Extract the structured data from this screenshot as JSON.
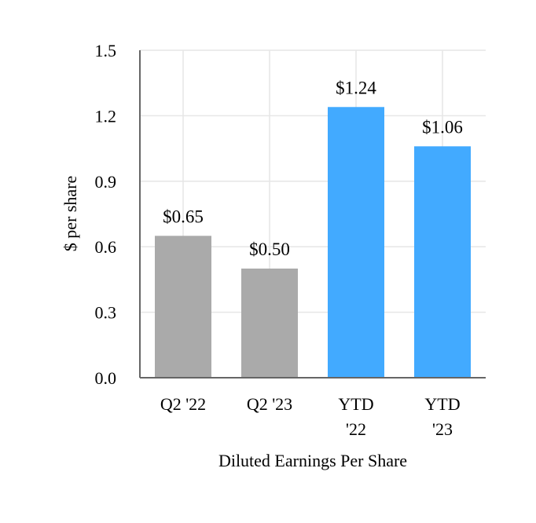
{
  "chart_data": {
    "type": "bar",
    "title": "",
    "xlabel": "Diluted Earnings Per Share",
    "ylabel": "$ per share",
    "ylim": [
      0,
      1.5
    ],
    "yticks": [
      "0.0",
      "0.3",
      "0.6",
      "0.9",
      "1.2",
      "1.5"
    ],
    "ytick_values": [
      0.0,
      0.3,
      0.6,
      0.9,
      1.2,
      1.5
    ],
    "grid": true,
    "categories": [
      [
        "Q2 '22"
      ],
      [
        "Q2 '23"
      ],
      [
        "YTD",
        "'22"
      ],
      [
        "YTD",
        "'23"
      ]
    ],
    "values": [
      0.65,
      0.5,
      1.24,
      1.06
    ],
    "value_labels": [
      "$0.65",
      "$0.50",
      "$1.24",
      "$1.06"
    ],
    "colors": [
      "#aaaaaa",
      "#aaaaaa",
      "#42aaff",
      "#42aaff"
    ]
  }
}
